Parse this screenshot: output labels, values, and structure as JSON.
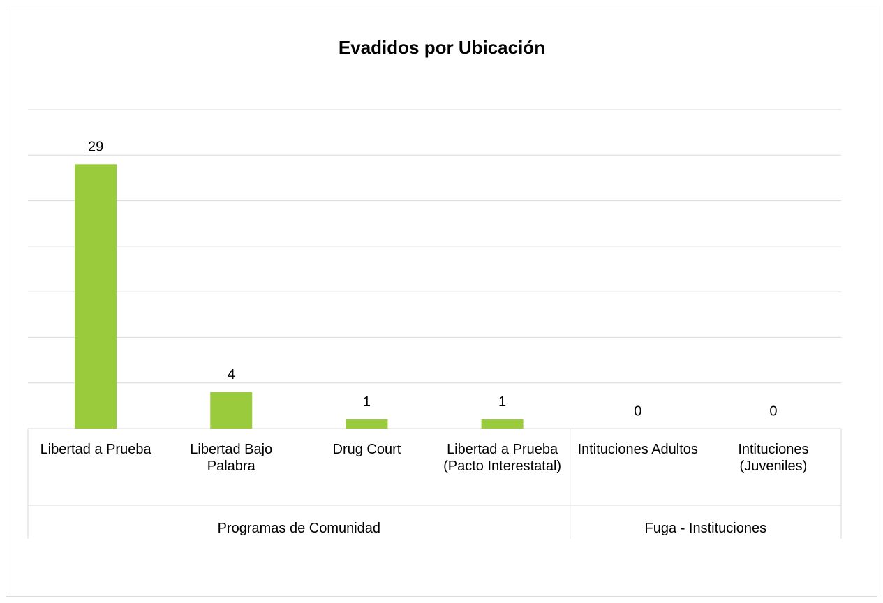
{
  "chart_data": {
    "type": "bar",
    "title": "Evadidos por Ubicación",
    "groups": [
      {
        "name": "Programas de Comunidad",
        "categories": [
          "Libertad a Prueba",
          "Libertad Bajo Palabra",
          "Drug Court",
          "Libertad a Prueba (Pacto Interestatal)"
        ],
        "values": [
          29,
          4,
          1,
          1
        ]
      },
      {
        "name": "Fuga - Instituciones",
        "categories": [
          "Intituciones Adultos",
          "Intituciones (Juveniles)"
        ],
        "values": [
          0,
          0
        ]
      }
    ],
    "color": "#9acb3c",
    "ylim": [
      0,
      35
    ],
    "yticks": [
      0,
      5,
      10,
      15,
      20,
      25,
      30,
      35
    ],
    "grid": true
  }
}
